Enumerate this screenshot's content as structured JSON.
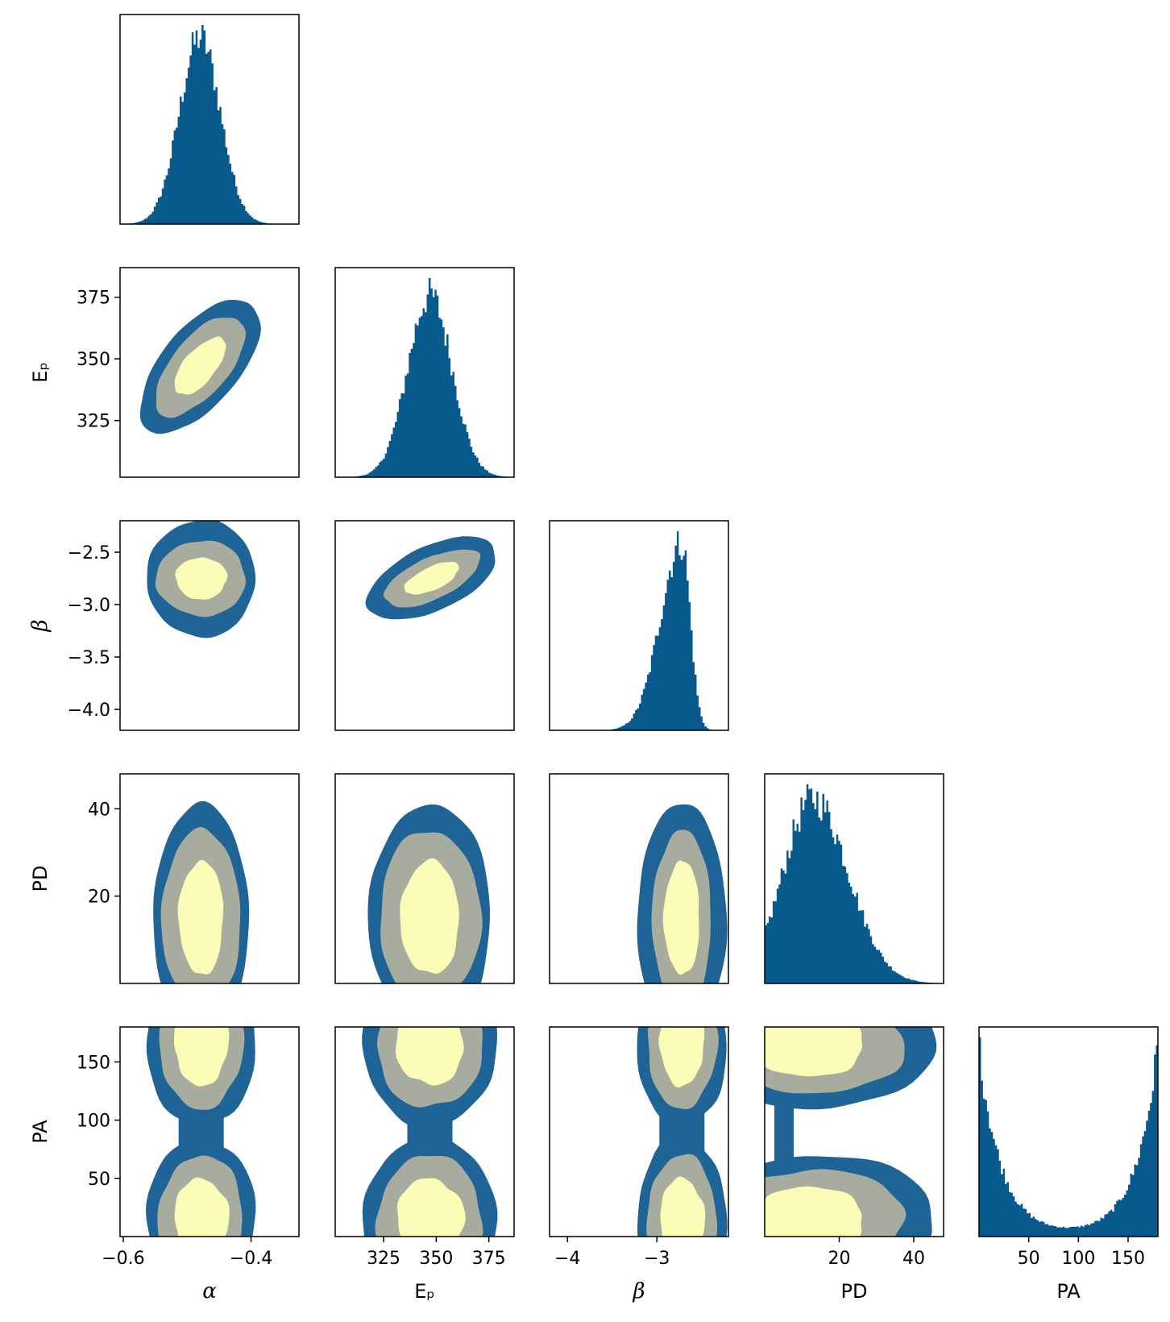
{
  "chart_data": {
    "type": "corner",
    "parameters": [
      {
        "key": "alpha",
        "label": "α",
        "italic": true,
        "range": [
          -0.605,
          -0.325
        ],
        "ticks": [
          {
            "value": -0.6,
            "label": "−0.6"
          },
          {
            "value": -0.4,
            "label": "−0.4"
          }
        ]
      },
      {
        "key": "Ep",
        "label": "Eₚ",
        "italic": false,
        "range": [
          302,
          387
        ],
        "ticks": [
          {
            "value": 325,
            "label": "325"
          },
          {
            "value": 350,
            "label": "350"
          },
          {
            "value": 375,
            "label": "375"
          }
        ]
      },
      {
        "key": "beta",
        "label": "β",
        "italic": true,
        "range": [
          -4.2,
          -2.2
        ],
        "ticks": [
          {
            "value": -4.0,
            "label": "−4.0"
          },
          {
            "value": -3.5,
            "label": "−3.5"
          },
          {
            "value": -3.0,
            "label": "−3.0"
          },
          {
            "value": -2.5,
            "label": "−2.5"
          }
        ],
        "xticks": [
          {
            "value": -4,
            "label": "−4"
          },
          {
            "value": -3,
            "label": "−3"
          }
        ]
      },
      {
        "key": "PD",
        "label": "PD",
        "italic": false,
        "range": [
          0,
          48
        ],
        "ticks": [
          {
            "value": 20,
            "label": "20"
          },
          {
            "value": 40,
            "label": "40"
          }
        ]
      },
      {
        "key": "PA",
        "label": "PA",
        "italic": false,
        "range": [
          0,
          180
        ],
        "ticks": [
          {
            "value": 50,
            "label": "50"
          },
          {
            "value": 100,
            "label": "100"
          },
          {
            "value": 150,
            "label": "150"
          }
        ]
      }
    ],
    "marginals": [
      {
        "param": "alpha",
        "shape": "gaussian",
        "mean": -0.48,
        "sd": 0.032
      },
      {
        "param": "Ep",
        "shape": "gaussian",
        "mean": 347,
        "sd": 10.5
      },
      {
        "param": "beta",
        "shape": "skew-left",
        "mean": -2.72,
        "sd": 0.12
      },
      {
        "param": "PD",
        "shape": "skew-right",
        "mean": 13,
        "sd": 7
      },
      {
        "param": "PA",
        "shape": "u-shaped",
        "mean": 0,
        "sd": 20
      }
    ],
    "levels": [
      "outer",
      "middle",
      "inner"
    ],
    "colors": {
      "outer": "#1f6496",
      "middle": "#a8ac9e",
      "inner": "#fbfcb6",
      "hist": "#08598c",
      "frame": "#000000"
    },
    "grid": false,
    "legend": "none"
  }
}
